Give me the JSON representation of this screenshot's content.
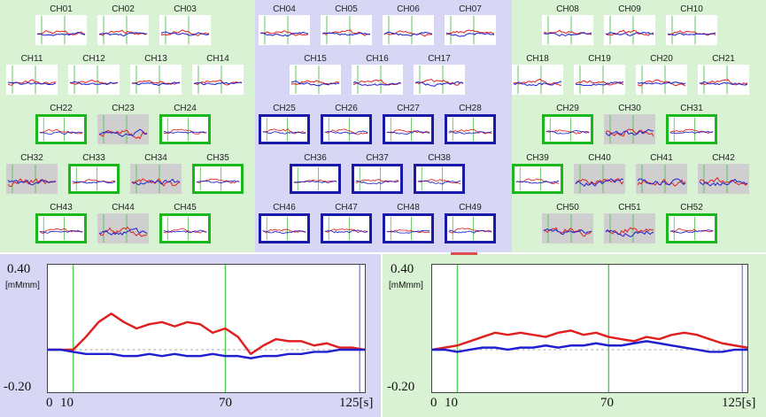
{
  "chart_data": {
    "type": "line",
    "channel_grid": {
      "series_colors": {
        "oxy": "#e02020",
        "deoxy": "#2020d0"
      },
      "frame_colors": {
        "green": "#1ab81a",
        "blue": "#1a1aa8"
      },
      "channels": [
        {
          "label": "CH01",
          "highlight": "none",
          "shaded": false
        },
        {
          "label": "CH02",
          "highlight": "none",
          "shaded": false
        },
        {
          "label": "CH03",
          "highlight": "none",
          "shaded": false
        },
        {
          "label": "CH04",
          "highlight": "none",
          "shaded": false
        },
        {
          "label": "CH05",
          "highlight": "none",
          "shaded": false
        },
        {
          "label": "CH06",
          "highlight": "none",
          "shaded": false
        },
        {
          "label": "CH07",
          "highlight": "none",
          "shaded": false
        },
        {
          "label": "CH08",
          "highlight": "none",
          "shaded": false
        },
        {
          "label": "CH09",
          "highlight": "none",
          "shaded": false
        },
        {
          "label": "CH10",
          "highlight": "none",
          "shaded": false
        },
        {
          "label": "CH11",
          "highlight": "none",
          "shaded": false
        },
        {
          "label": "CH12",
          "highlight": "none",
          "shaded": false
        },
        {
          "label": "CH13",
          "highlight": "none",
          "shaded": false
        },
        {
          "label": "CH14",
          "highlight": "none",
          "shaded": false
        },
        {
          "label": "CH15",
          "highlight": "none",
          "shaded": false
        },
        {
          "label": "CH16",
          "highlight": "none",
          "shaded": false
        },
        {
          "label": "CH17",
          "highlight": "none",
          "shaded": false
        },
        {
          "label": "CH18",
          "highlight": "none",
          "shaded": false
        },
        {
          "label": "CH19",
          "highlight": "none",
          "shaded": false
        },
        {
          "label": "CH20",
          "highlight": "none",
          "shaded": false
        },
        {
          "label": "CH21",
          "highlight": "none",
          "shaded": false
        },
        {
          "label": "CH22",
          "highlight": "green",
          "shaded": false
        },
        {
          "label": "CH23",
          "highlight": "none",
          "shaded": true
        },
        {
          "label": "CH24",
          "highlight": "green",
          "shaded": false
        },
        {
          "label": "CH25",
          "highlight": "blue",
          "shaded": false
        },
        {
          "label": "CH26",
          "highlight": "blue",
          "shaded": false
        },
        {
          "label": "CH27",
          "highlight": "blue",
          "shaded": false
        },
        {
          "label": "CH28",
          "highlight": "blue",
          "shaded": false
        },
        {
          "label": "CH29",
          "highlight": "green",
          "shaded": false
        },
        {
          "label": "CH30",
          "highlight": "none",
          "shaded": true
        },
        {
          "label": "CH31",
          "highlight": "green",
          "shaded": false
        },
        {
          "label": "CH32",
          "highlight": "none",
          "shaded": true
        },
        {
          "label": "CH33",
          "highlight": "green",
          "shaded": false
        },
        {
          "label": "CH34",
          "highlight": "none",
          "shaded": true
        },
        {
          "label": "CH35",
          "highlight": "green",
          "shaded": false
        },
        {
          "label": "CH36",
          "highlight": "blue",
          "shaded": false
        },
        {
          "label": "CH37",
          "highlight": "blue",
          "shaded": false
        },
        {
          "label": "CH38",
          "highlight": "blue",
          "shaded": false
        },
        {
          "label": "CH39",
          "highlight": "green",
          "shaded": false
        },
        {
          "label": "CH40",
          "highlight": "none",
          "shaded": true
        },
        {
          "label": "CH41",
          "highlight": "none",
          "shaded": true
        },
        {
          "label": "CH42",
          "highlight": "none",
          "shaded": true
        },
        {
          "label": "CH43",
          "highlight": "green",
          "shaded": false
        },
        {
          "label": "CH44",
          "highlight": "none",
          "shaded": true
        },
        {
          "label": "CH45",
          "highlight": "green",
          "shaded": false
        },
        {
          "label": "CH46",
          "highlight": "blue",
          "shaded": false
        },
        {
          "label": "CH47",
          "highlight": "blue",
          "shaded": false
        },
        {
          "label": "CH48",
          "highlight": "blue",
          "shaded": false
        },
        {
          "label": "CH49",
          "highlight": "blue",
          "shaded": false
        },
        {
          "label": "CH50",
          "highlight": "none",
          "shaded": true
        },
        {
          "label": "CH51",
          "highlight": "none",
          "shaded": true
        },
        {
          "label": "CH52",
          "highlight": "green",
          "shaded": false
        }
      ]
    },
    "main_plots": [
      {
        "y_top_label": "0.40",
        "y_bottom_label": "-0.20",
        "unit": "[mMmm]",
        "ylim": [
          -0.2,
          0.4
        ],
        "xlim": [
          0,
          125
        ],
        "x_ticks": [
          "0",
          "10",
          "70",
          "125[s]"
        ],
        "markers": [
          {
            "x": 10,
            "color": "#55cc55"
          },
          {
            "x": 70,
            "color": "#55cc55"
          },
          {
            "x": 123,
            "color": "#9090c0"
          }
        ],
        "baseline": 0,
        "series": [
          {
            "color": "#e02020",
            "x": [
              0,
              5,
              10,
              15,
              20,
              25,
              30,
              35,
              40,
              45,
              50,
              55,
              60,
              65,
              70,
              75,
              80,
              85,
              90,
              95,
              100,
              105,
              110,
              115,
              120,
              125
            ],
            "values": [
              0,
              0,
              0,
              0.06,
              0.13,
              0.17,
              0.13,
              0.1,
              0.12,
              0.13,
              0.11,
              0.13,
              0.12,
              0.08,
              0.1,
              0.06,
              -0.02,
              0.02,
              0.05,
              0.04,
              0.04,
              0.02,
              0.03,
              0.01,
              0.01,
              0
            ]
          },
          {
            "color": "#2020d0",
            "x": [
              0,
              5,
              10,
              15,
              20,
              25,
              30,
              35,
              40,
              45,
              50,
              55,
              60,
              65,
              70,
              75,
              80,
              85,
              90,
              95,
              100,
              105,
              110,
              115,
              120,
              125
            ],
            "values": [
              0,
              0,
              -0.01,
              -0.02,
              -0.02,
              -0.02,
              -0.03,
              -0.03,
              -0.02,
              -0.03,
              -0.02,
              -0.03,
              -0.03,
              -0.02,
              -0.03,
              -0.03,
              -0.04,
              -0.03,
              -0.03,
              -0.02,
              -0.02,
              -0.01,
              -0.01,
              0,
              0,
              0
            ]
          }
        ]
      },
      {
        "y_top_label": "0.40",
        "y_bottom_label": "-0.20",
        "unit": "[mMmm]",
        "ylim": [
          -0.2,
          0.4
        ],
        "xlim": [
          0,
          125
        ],
        "x_ticks": [
          "0",
          "10",
          "70",
          "125[s]"
        ],
        "markers": [
          {
            "x": 10,
            "color": "#55cc55"
          },
          {
            "x": 70,
            "color": "#55cc55"
          },
          {
            "x": 123,
            "color": "#9090c0"
          }
        ],
        "baseline": 0,
        "series": [
          {
            "color": "#e02020",
            "x": [
              0,
              5,
              10,
              15,
              20,
              25,
              30,
              35,
              40,
              45,
              50,
              55,
              60,
              65,
              70,
              75,
              80,
              85,
              90,
              95,
              100,
              105,
              110,
              115,
              120,
              125
            ],
            "values": [
              0,
              0.01,
              0.02,
              0.04,
              0.06,
              0.08,
              0.07,
              0.08,
              0.07,
              0.06,
              0.08,
              0.09,
              0.07,
              0.08,
              0.06,
              0.05,
              0.04,
              0.06,
              0.05,
              0.07,
              0.08,
              0.07,
              0.05,
              0.03,
              0.02,
              0.01
            ]
          },
          {
            "color": "#2020d0",
            "x": [
              0,
              5,
              10,
              15,
              20,
              25,
              30,
              35,
              40,
              45,
              50,
              55,
              60,
              65,
              70,
              75,
              80,
              85,
              90,
              95,
              100,
              105,
              110,
              115,
              120,
              125
            ],
            "values": [
              0,
              0,
              -0.01,
              0,
              0.01,
              0.01,
              0,
              0.01,
              0.01,
              0.02,
              0.01,
              0.02,
              0.02,
              0.03,
              0.02,
              0.02,
              0.03,
              0.04,
              0.03,
              0.02,
              0.01,
              0,
              -0.01,
              -0.01,
              0,
              0
            ]
          }
        ]
      }
    ]
  }
}
